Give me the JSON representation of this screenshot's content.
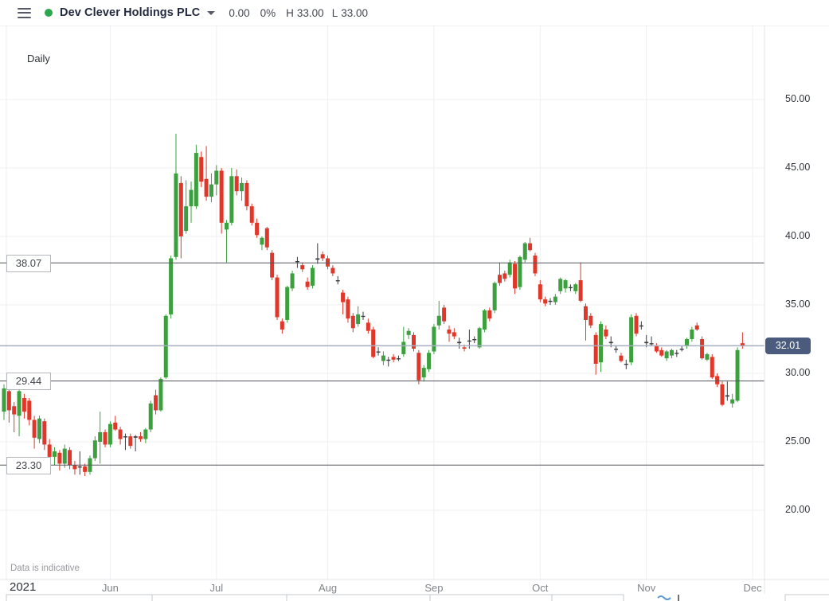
{
  "header": {
    "symbol": "Dev Clever Holdings PLC",
    "change": "0.00",
    "change_pct": "0%",
    "high_label": "H",
    "high": "33.00",
    "low_label": "L",
    "low": "33.00",
    "status_dot_color": "#2ba84e"
  },
  "chart": {
    "interval_label": "Daily",
    "watermark": "Data is indicative"
  },
  "chart_data": {
    "type": "candlestick",
    "title": "Dev Clever Holdings PLC — Daily candlestick chart, 2021",
    "x_axis": {
      "year": "2021",
      "months": [
        {
          "label": "Jun",
          "i": 21
        },
        {
          "label": "Jul",
          "i": 42
        },
        {
          "label": "Aug",
          "i": 64
        },
        {
          "label": "Sep",
          "i": 85
        },
        {
          "label": "Oct",
          "i": 106
        },
        {
          "label": "Nov",
          "i": 127
        },
        {
          "label": "Dec",
          "i": 148
        }
      ]
    },
    "y_axis": {
      "ticks": [
        {
          "v": 50,
          "label": "50.00"
        },
        {
          "v": 45,
          "label": "45.00"
        },
        {
          "v": 40,
          "label": "40.00"
        },
        {
          "v": 35,
          "label": "35.00"
        },
        {
          "v": 30,
          "label": "30.00"
        },
        {
          "v": 25,
          "label": "25.00"
        },
        {
          "v": 20,
          "label": "20.00"
        }
      ],
      "ylim": [
        15.0,
        55.4
      ],
      "grid": true
    },
    "levels": [
      {
        "price": 38.07,
        "label": "38.07"
      },
      {
        "price": 29.44,
        "label": "29.44"
      },
      {
        "price": 23.3,
        "label": "23.30"
      }
    ],
    "last_price": {
      "value": 32.01,
      "label": "32.01"
    },
    "colors": {
      "up": "#3ca03f",
      "down": "#df382a",
      "doji": "#3c3d42",
      "grid": "#efeff2",
      "level_line": "#53555c",
      "last_line": "#a6aebf",
      "badge_bg": "#4a5b7d",
      "separator": "#e3e4e8"
    },
    "ohlc": [
      [
        27.2,
        29.2,
        26.6,
        28.9
      ],
      [
        28.7,
        29.0,
        26.4,
        27.3
      ],
      [
        27.6,
        27.9,
        25.7,
        27.0
      ],
      [
        26.9,
        29.1,
        25.4,
        28.7
      ],
      [
        28.2,
        28.5,
        26.7,
        27.2
      ],
      [
        28.0,
        28.2,
        26.2,
        26.6
      ],
      [
        26.6,
        26.9,
        24.5,
        25.3
      ],
      [
        25.2,
        26.9,
        24.9,
        26.7
      ],
      [
        26.5,
        26.7,
        24.4,
        24.8
      ],
      [
        24.8,
        25.2,
        23.3,
        23.9
      ],
      [
        23.9,
        24.6,
        23.3,
        24.3
      ],
      [
        24.2,
        24.4,
        22.9,
        23.4
      ],
      [
        23.4,
        24.8,
        23.1,
        24.5
      ],
      [
        24.4,
        24.6,
        23.0,
        23.3
      ],
      [
        23.3,
        23.6,
        22.6,
        23.0
      ],
      [
        23.2,
        24.3,
        22.6,
        23.2,
        "d"
      ],
      [
        23.2,
        23.4,
        22.5,
        22.8
      ],
      [
        22.8,
        24.0,
        22.6,
        23.8
      ],
      [
        23.8,
        25.4,
        23.6,
        25.1
      ],
      [
        25.0,
        27.2,
        23.4,
        25.7
      ],
      [
        25.7,
        25.9,
        24.6,
        24.8
      ],
      [
        24.8,
        26.5,
        24.6,
        26.3
      ],
      [
        26.4,
        26.9,
        25.8,
        25.9
      ],
      [
        25.9,
        26.1,
        24.8,
        25.2
      ],
      [
        25.4,
        25.6,
        24.4,
        25.4,
        "d"
      ],
      [
        25.4,
        25.6,
        24.5,
        24.7
      ],
      [
        25.3,
        25.5,
        24.3,
        25.4,
        "d"
      ],
      [
        25.4,
        25.7,
        25.0,
        25.2
      ],
      [
        25.2,
        26.0,
        24.9,
        25.9
      ],
      [
        25.9,
        28.0,
        25.7,
        27.8
      ],
      [
        28.4,
        28.8,
        27.0,
        27.3
      ],
      [
        27.3,
        29.7,
        27.2,
        29.6
      ],
      [
        29.7,
        34.3,
        29.6,
        34.2
      ],
      [
        34.3,
        38.6,
        34.0,
        38.4
      ],
      [
        38.5,
        47.5,
        38.3,
        44.6
      ],
      [
        43.9,
        44.4,
        38.4,
        40.0
      ],
      [
        40.4,
        44.1,
        40.2,
        42.2
      ],
      [
        42.2,
        44.0,
        41.0,
        43.4
      ],
      [
        42.2,
        46.7,
        42.0,
        46.1
      ],
      [
        45.8,
        46.2,
        43.6,
        44.0
      ],
      [
        44.2,
        46.6,
        42.6,
        42.9
      ],
      [
        42.9,
        44.6,
        42.5,
        43.8
      ],
      [
        43.8,
        45.2,
        43.0,
        44.8
      ],
      [
        44.8,
        45.0,
        40.2,
        41.0
      ],
      [
        40.5,
        41.2,
        38.1,
        41.0
      ],
      [
        41.0,
        45.0,
        40.8,
        44.4
      ],
      [
        44.4,
        44.9,
        43.0,
        43.3
      ],
      [
        43.3,
        44.3,
        42.6,
        43.9
      ],
      [
        43.9,
        44.1,
        41.9,
        42.2
      ],
      [
        42.2,
        42.4,
        40.8,
        41.0
      ],
      [
        41.0,
        41.3,
        39.9,
        40.1
      ],
      [
        39.4,
        40.0,
        39.0,
        39.9
      ],
      [
        40.6,
        40.7,
        39.0,
        39.2
      ],
      [
        38.8,
        39.0,
        36.8,
        37.0
      ],
      [
        37.0,
        37.2,
        33.9,
        34.1
      ],
      [
        33.8,
        34.0,
        32.9,
        33.2
      ],
      [
        33.9,
        36.4,
        33.7,
        36.3
      ],
      [
        36.2,
        37.5,
        36.0,
        37.3
      ],
      [
        38.2,
        38.5,
        37.7,
        38.2,
        "d"
      ],
      [
        37.9,
        38.1,
        37.4,
        37.6
      ],
      [
        36.7,
        37.0,
        36.1,
        36.3
      ],
      [
        36.4,
        37.9,
        36.2,
        37.7
      ],
      [
        38.3,
        39.5,
        38.0,
        38.4,
        "d"
      ],
      [
        38.7,
        38.9,
        38.2,
        38.4
      ],
      [
        38.4,
        38.6,
        37.6,
        37.8
      ],
      [
        37.7,
        37.9,
        37.1,
        37.3
      ],
      [
        36.8,
        37.1,
        36.5,
        36.8,
        "d"
      ],
      [
        35.9,
        36.1,
        34.3,
        35.2
      ],
      [
        35.4,
        35.6,
        33.7,
        34.0
      ],
      [
        34.2,
        34.4,
        33.0,
        33.3
      ],
      [
        33.6,
        34.9,
        33.4,
        34.3
      ],
      [
        34.2,
        34.5,
        33.9,
        34.2,
        "d"
      ],
      [
        33.7,
        34.0,
        32.9,
        33.1
      ],
      [
        33.2,
        33.4,
        31.1,
        31.2
      ],
      [
        31.6,
        31.9,
        31.3,
        31.6,
        "d"
      ],
      [
        30.9,
        31.6,
        30.6,
        31.3
      ],
      [
        31.0,
        31.2,
        30.5,
        31.0,
        "d"
      ],
      [
        31.2,
        31.4,
        30.8,
        31.0
      ],
      [
        31.1,
        31.3,
        30.9,
        31.1,
        "d"
      ],
      [
        31.4,
        33.4,
        31.2,
        32.3
      ],
      [
        32.8,
        33.3,
        32.5,
        33.1
      ],
      [
        32.8,
        33.0,
        31.6,
        31.8
      ],
      [
        31.5,
        31.7,
        29.2,
        29.5
      ],
      [
        29.7,
        30.6,
        29.4,
        30.4
      ],
      [
        30.3,
        31.7,
        30.1,
        31.5
      ],
      [
        31.6,
        33.6,
        31.4,
        33.4
      ],
      [
        33.5,
        35.3,
        33.2,
        34.2
      ],
      [
        34.8,
        35.0,
        33.6,
        33.8
      ],
      [
        33.2,
        33.5,
        32.3,
        32.9
      ],
      [
        33.0,
        33.3,
        32.5,
        32.7
      ],
      [
        32.2,
        32.6,
        31.8,
        32.3,
        "d"
      ],
      [
        31.9,
        32.1,
        31.6,
        31.8
      ],
      [
        32.4,
        33.2,
        31.8,
        32.4,
        "d"
      ],
      [
        32.5,
        32.7,
        32.2,
        32.5,
        "d"
      ],
      [
        31.9,
        33.4,
        31.8,
        33.3
      ],
      [
        33.2,
        34.7,
        33.0,
        34.6
      ],
      [
        34.6,
        34.8,
        33.8,
        34.0
      ],
      [
        34.6,
        36.7,
        34.4,
        36.6
      ],
      [
        37.2,
        38.1,
        36.4,
        36.6
      ],
      [
        37.3,
        37.5,
        36.7,
        36.9
      ],
      [
        37.2,
        38.3,
        37.0,
        38.1
      ],
      [
        38.0,
        38.2,
        35.8,
        36.2
      ],
      [
        36.3,
        38.6,
        36.1,
        38.5
      ],
      [
        38.3,
        39.6,
        38.1,
        39.5
      ],
      [
        39.5,
        39.9,
        38.9,
        39.0
      ],
      [
        38.6,
        38.8,
        37.1,
        37.3
      ],
      [
        36.5,
        36.8,
        35.2,
        35.4
      ],
      [
        35.4,
        35.6,
        34.9,
        35.1
      ],
      [
        35.3,
        35.5,
        35.0,
        35.3,
        "d"
      ],
      [
        35.2,
        35.8,
        35.0,
        35.6
      ],
      [
        36.0,
        37.0,
        35.8,
        36.9
      ],
      [
        36.2,
        36.9,
        35.9,
        36.8
      ],
      [
        36.3,
        36.5,
        36.0,
        36.3,
        "d"
      ],
      [
        36.0,
        36.6,
        35.8,
        36.5
      ],
      [
        36.8,
        38.1,
        35.2,
        35.3
      ],
      [
        34.9,
        35.1,
        32.4,
        33.9
      ],
      [
        34.2,
        34.4,
        33.3,
        33.5
      ],
      [
        32.8,
        33.0,
        29.9,
        30.7
      ],
      [
        30.8,
        33.8,
        30.1,
        33.6
      ],
      [
        33.2,
        33.5,
        32.5,
        32.7
      ],
      [
        32.2,
        32.7,
        31.9,
        32.3,
        "d"
      ],
      [
        31.8,
        32.0,
        31.5,
        31.8,
        "d"
      ],
      [
        31.3,
        31.5,
        30.8,
        30.9
      ],
      [
        30.7,
        31.0,
        30.3,
        30.7,
        "d"
      ],
      [
        30.8,
        34.3,
        30.6,
        34.1
      ],
      [
        34.2,
        34.4,
        32.7,
        32.9
      ],
      [
        33.5,
        33.8,
        33.2,
        33.5,
        "d"
      ],
      [
        32.2,
        32.8,
        31.9,
        32.3,
        "d"
      ],
      [
        32.2,
        32.7,
        32.0,
        32.2,
        "d"
      ],
      [
        32.0,
        32.2,
        31.5,
        31.6
      ],
      [
        31.7,
        31.9,
        31.2,
        31.3
      ],
      [
        31.1,
        31.7,
        30.9,
        31.6
      ],
      [
        31.3,
        31.8,
        31.1,
        31.7
      ],
      [
        31.5,
        31.7,
        31.2,
        31.5,
        "d"
      ],
      [
        31.8,
        32.0,
        31.6,
        31.8,
        "d"
      ],
      [
        32.0,
        32.6,
        31.8,
        32.5
      ],
      [
        32.5,
        33.4,
        32.3,
        33.2
      ],
      [
        33.5,
        33.7,
        33.1,
        33.2
      ],
      [
        32.5,
        32.7,
        31.0,
        31.1
      ],
      [
        31.0,
        31.5,
        30.9,
        31.4
      ],
      [
        31.2,
        31.4,
        29.6,
        29.7
      ],
      [
        29.8,
        30.0,
        29.0,
        29.2
      ],
      [
        29.2,
        29.4,
        27.6,
        27.7
      ],
      [
        28.4,
        29.4,
        28.0,
        28.3,
        "d"
      ],
      [
        27.8,
        28.5,
        27.5,
        28.1
      ],
      [
        28.0,
        31.9,
        27.9,
        31.7
      ],
      [
        32.2,
        33.0,
        31.8,
        32.0
      ]
    ]
  }
}
